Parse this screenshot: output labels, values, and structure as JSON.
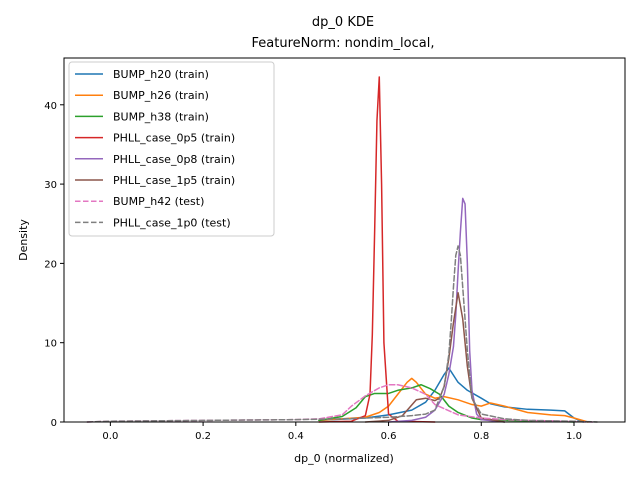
{
  "chart_data": {
    "type": "line",
    "title": "dp_0 KDE",
    "subtitle": "FeatureNorm: nondim_local,",
    "xlabel": "dp_0 (normalized)",
    "ylabel": "Density",
    "xlim": [
      -0.1,
      1.11
    ],
    "ylim": [
      0,
      45.9
    ],
    "xticks": [
      "0.0",
      "0.2",
      "0.4",
      "0.6",
      "0.8",
      "1.0"
    ],
    "xtick_values": [
      0.0,
      0.2,
      0.4,
      0.6,
      0.8,
      1.0
    ],
    "yticks": [
      "0",
      "10",
      "20",
      "30",
      "40"
    ],
    "ytick_values": [
      0,
      10,
      20,
      30,
      40
    ],
    "grid": false,
    "legend_position": "top-left",
    "series": [
      {
        "name": "BUMP_h20 (train)",
        "color": "#1f77b4",
        "dash": false,
        "x": [
          0.45,
          0.55,
          0.6,
          0.65,
          0.68,
          0.7,
          0.72,
          0.73,
          0.75,
          0.77,
          0.8,
          0.82,
          0.85,
          0.9,
          0.95,
          0.98,
          1.0,
          1.02
        ],
        "y": [
          0.2,
          0.5,
          0.9,
          1.5,
          2.5,
          4.0,
          6.0,
          6.8,
          5.0,
          4.0,
          3.0,
          2.3,
          1.9,
          1.6,
          1.5,
          1.4,
          0.5,
          0.0
        ]
      },
      {
        "name": "BUMP_h26 (train)",
        "color": "#ff7f0e",
        "dash": false,
        "x": [
          0.45,
          0.55,
          0.58,
          0.6,
          0.62,
          0.64,
          0.65,
          0.66,
          0.68,
          0.7,
          0.72,
          0.75,
          0.78,
          0.8,
          0.82,
          0.85,
          0.9,
          0.95,
          0.98,
          1.0,
          1.03
        ],
        "y": [
          0.2,
          0.6,
          1.2,
          2.0,
          3.5,
          5.0,
          5.5,
          5.0,
          3.5,
          3.0,
          3.2,
          2.8,
          2.2,
          2.0,
          2.4,
          2.0,
          1.2,
          0.9,
          0.8,
          0.5,
          0.0
        ]
      },
      {
        "name": "BUMP_h38 (train)",
        "color": "#2ca02c",
        "dash": false,
        "x": [
          0.45,
          0.5,
          0.53,
          0.55,
          0.57,
          0.6,
          0.62,
          0.65,
          0.67,
          0.69,
          0.71,
          0.73,
          0.75,
          0.78,
          0.8,
          0.85,
          0.9,
          0.95,
          1.0
        ],
        "y": [
          0.2,
          0.7,
          1.8,
          3.2,
          3.6,
          3.6,
          4.0,
          4.3,
          4.7,
          4.2,
          3.5,
          2.0,
          1.2,
          0.5,
          0.3,
          0.2,
          0.15,
          0.1,
          0.0
        ]
      },
      {
        "name": "PHLL_case_0p5 (train)",
        "color": "#d62728",
        "dash": false,
        "x": [
          0.45,
          0.52,
          0.55,
          0.56,
          0.565,
          0.57,
          0.575,
          0.58,
          0.585,
          0.59,
          0.6,
          0.62,
          0.7
        ],
        "y": [
          0.0,
          0.1,
          0.8,
          3.5,
          11.0,
          24.0,
          38.0,
          43.5,
          30.0,
          10.0,
          1.0,
          0.1,
          0.0
        ]
      },
      {
        "name": "PHLL_case_0p8 (train)",
        "color": "#9467bd",
        "dash": false,
        "x": [
          0.6,
          0.65,
          0.68,
          0.7,
          0.72,
          0.73,
          0.74,
          0.745,
          0.75,
          0.755,
          0.76,
          0.765,
          0.77,
          0.775,
          0.78,
          0.79,
          0.8,
          0.85
        ],
        "y": [
          0.0,
          0.2,
          0.6,
          1.5,
          3.5,
          6.0,
          9.5,
          13.5,
          19.0,
          24.0,
          28.2,
          27.5,
          20.0,
          9.0,
          4.0,
          1.0,
          0.3,
          0.0
        ]
      },
      {
        "name": "PHLL_case_1p5 (train)",
        "color": "#8c564b",
        "dash": false,
        "x": [
          0.55,
          0.6,
          0.63,
          0.66,
          0.68,
          0.7,
          0.71,
          0.72,
          0.73,
          0.74,
          0.75,
          0.76,
          0.77,
          0.78,
          0.8,
          0.85
        ],
        "y": [
          0.0,
          0.2,
          0.8,
          2.8,
          3.0,
          2.7,
          3.0,
          4.5,
          8.0,
          12.5,
          16.3,
          13.0,
          7.0,
          3.0,
          0.5,
          0.0
        ]
      },
      {
        "name": "BUMP_h42 (test)",
        "color": "#e377c2",
        "dash": true,
        "x": [
          -0.05,
          0.0,
          0.1,
          0.2,
          0.3,
          0.4,
          0.45,
          0.5,
          0.52,
          0.55,
          0.58,
          0.6,
          0.62,
          0.65,
          0.68,
          0.7,
          0.75,
          0.8,
          0.85,
          0.9,
          0.95,
          1.0,
          1.04
        ],
        "y": [
          0.0,
          0.1,
          0.15,
          0.2,
          0.25,
          0.3,
          0.4,
          0.9,
          2.0,
          3.3,
          4.3,
          4.7,
          4.7,
          4.3,
          3.5,
          2.2,
          0.9,
          0.5,
          0.3,
          0.2,
          0.15,
          0.05,
          0.0
        ]
      },
      {
        "name": "PHLL_case_1p0 (test)",
        "color": "#7f7f7f",
        "dash": true,
        "x": [
          -0.05,
          0.0,
          0.2,
          0.4,
          0.5,
          0.55,
          0.6,
          0.65,
          0.68,
          0.7,
          0.72,
          0.73,
          0.735,
          0.74,
          0.745,
          0.75,
          0.755,
          0.76,
          0.77,
          0.78,
          0.8,
          0.85,
          0.9,
          1.0,
          1.05
        ],
        "y": [
          0.0,
          0.1,
          0.2,
          0.3,
          0.4,
          0.5,
          0.6,
          0.8,
          1.0,
          1.5,
          4.5,
          8.5,
          12.5,
          17.0,
          21.0,
          22.2,
          21.0,
          17.0,
          9.0,
          3.0,
          1.0,
          0.4,
          0.2,
          0.1,
          0.0
        ]
      }
    ]
  }
}
